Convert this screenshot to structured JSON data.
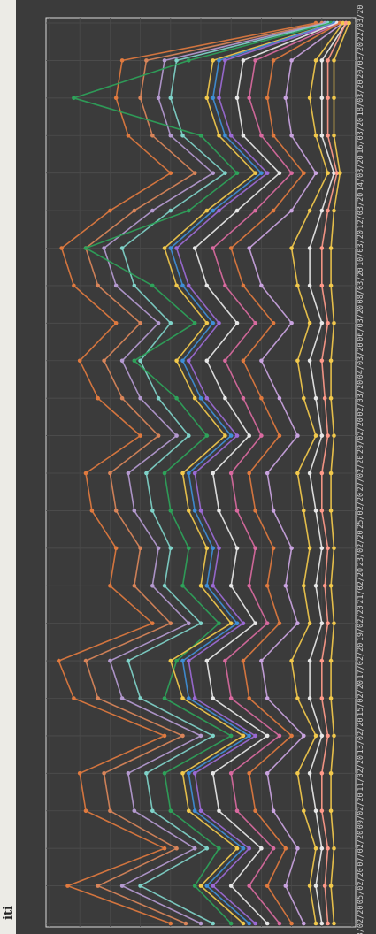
{
  "page": {
    "title": "iti"
  },
  "chart_data": {
    "type": "line",
    "title": "iti",
    "xlabel": "",
    "ylabel": "",
    "grid": true,
    "legend": "none",
    "background": "#3a3a3a",
    "x": [
      "03/02/20",
      "05/02/20",
      "07/02/20",
      "09/02/20",
      "11/02/20",
      "13/02/20",
      "15/02/20",
      "17/02/20",
      "19/02/20",
      "21/02/20",
      "23/02/20",
      "25/02/20",
      "27/02/20",
      "29/02/20",
      "02/03/20",
      "04/03/20",
      "06/03/20",
      "08/03/20",
      "10/03/20",
      "12/03/20",
      "14/03/20",
      "16/03/20",
      "18/03/20",
      "20/03/20",
      "22/03/20"
    ],
    "ylim": [
      0,
      100
    ],
    "series": [
      {
        "color": "#e07a3f",
        "values": [
          60,
          94,
          62,
          88,
          90,
          62,
          92,
          97,
          66,
          80,
          78,
          86,
          88,
          70,
          84,
          90,
          78,
          92,
          96,
          80,
          60,
          74,
          78,
          76,
          12
        ]
      },
      {
        "color": "#d9855a",
        "values": [
          55,
          84,
          58,
          80,
          82,
          56,
          84,
          88,
          60,
          72,
          70,
          78,
          80,
          64,
          76,
          82,
          70,
          84,
          88,
          72,
          52,
          66,
          70,
          68,
          10
        ]
      },
      {
        "color": "#b59ad1",
        "values": [
          50,
          76,
          52,
          72,
          74,
          50,
          76,
          80,
          54,
          66,
          64,
          72,
          74,
          58,
          70,
          76,
          64,
          78,
          82,
          66,
          46,
          60,
          64,
          62,
          9
        ]
      },
      {
        "color": "#7fd3c9",
        "values": [
          46,
          70,
          48,
          66,
          68,
          46,
          70,
          74,
          50,
          62,
          60,
          66,
          68,
          54,
          64,
          70,
          60,
          72,
          76,
          60,
          42,
          56,
          60,
          58,
          8
        ]
      },
      {
        "color": "#2ea35a",
        "values": [
          40,
          52,
          44,
          60,
          62,
          40,
          62,
          58,
          44,
          56,
          54,
          60,
          62,
          48,
          58,
          72,
          52,
          66,
          88,
          54,
          38,
          50,
          92,
          54,
          7
        ]
      },
      {
        "color": "#f2c94c",
        "values": [
          36,
          50,
          38,
          54,
          56,
          36,
          56,
          60,
          40,
          50,
          48,
          54,
          56,
          42,
          52,
          58,
          48,
          58,
          62,
          48,
          32,
          44,
          48,
          46,
          6
        ]
      },
      {
        "color": "#3f8fd8",
        "values": [
          34,
          48,
          36,
          52,
          54,
          34,
          54,
          56,
          38,
          48,
          46,
          52,
          54,
          40,
          50,
          56,
          46,
          56,
          60,
          46,
          30,
          42,
          46,
          44,
          6
        ]
      },
      {
        "color": "#9c6ad6",
        "values": [
          32,
          46,
          34,
          50,
          52,
          32,
          52,
          54,
          36,
          46,
          44,
          50,
          52,
          38,
          48,
          54,
          44,
          54,
          58,
          44,
          28,
          40,
          44,
          42,
          5
        ]
      },
      {
        "color": "#e8e8e8",
        "values": [
          28,
          40,
          30,
          44,
          46,
          28,
          46,
          48,
          32,
          40,
          38,
          44,
          46,
          34,
          42,
          48,
          38,
          48,
          52,
          38,
          24,
          36,
          38,
          36,
          5
        ]
      },
      {
        "color": "#d96aa0",
        "values": [
          24,
          34,
          26,
          38,
          40,
          24,
          40,
          42,
          28,
          34,
          32,
          38,
          40,
          30,
          36,
          42,
          32,
          42,
          46,
          32,
          20,
          30,
          34,
          32,
          4
        ]
      },
      {
        "color": "#e07a3f",
        "values": [
          20,
          28,
          22,
          32,
          34,
          20,
          34,
          36,
          24,
          28,
          26,
          32,
          34,
          24,
          30,
          36,
          26,
          36,
          40,
          26,
          16,
          26,
          28,
          26,
          4
        ]
      },
      {
        "color": "#c9a3e0",
        "values": [
          16,
          22,
          18,
          26,
          28,
          16,
          28,
          30,
          18,
          22,
          20,
          26,
          28,
          18,
          24,
          30,
          20,
          30,
          34,
          20,
          12,
          20,
          22,
          20,
          3
        ]
      },
      {
        "color": "#f2c94c",
        "values": [
          12,
          14,
          12,
          16,
          18,
          12,
          18,
          20,
          14,
          16,
          14,
          16,
          18,
          12,
          16,
          18,
          14,
          18,
          20,
          14,
          8,
          12,
          14,
          12,
          3
        ]
      },
      {
        "color": "#e8e8e8",
        "values": [
          10,
          12,
          10,
          12,
          14,
          10,
          14,
          14,
          10,
          12,
          10,
          12,
          14,
          10,
          12,
          14,
          10,
          14,
          14,
          10,
          6,
          10,
          10,
          10,
          2
        ]
      },
      {
        "color": "#ff9a8a",
        "values": [
          8,
          9,
          8,
          10,
          10,
          8,
          10,
          10,
          8,
          9,
          8,
          10,
          10,
          8,
          9,
          10,
          8,
          10,
          10,
          8,
          5,
          8,
          8,
          8,
          2
        ]
      },
      {
        "color": "#f2c94c",
        "values": [
          6,
          7,
          6,
          7,
          7,
          6,
          7,
          7,
          6,
          7,
          6,
          7,
          7,
          6,
          7,
          7,
          6,
          7,
          7,
          6,
          4,
          6,
          6,
          6,
          1
        ]
      }
    ]
  }
}
